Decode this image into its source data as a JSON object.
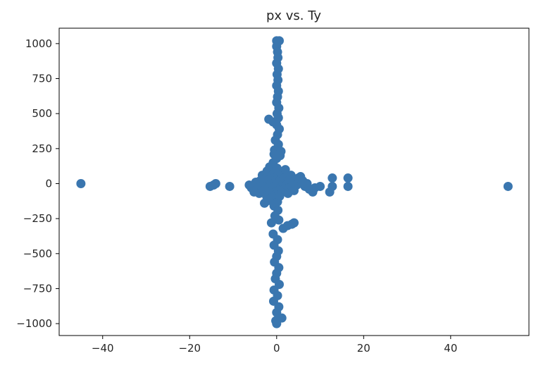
{
  "chart_data": {
    "type": "scatter",
    "title": "px vs. Ty",
    "xlabel": "",
    "ylabel": "",
    "xlim": [
      -50,
      58
    ],
    "ylim": [
      -1085,
      1110
    ],
    "x_ticks": [
      -40,
      -20,
      0,
      20,
      40
    ],
    "y_ticks": [
      1000,
      750,
      500,
      250,
      0,
      -250,
      -500,
      -750,
      -1000
    ],
    "grid": false,
    "marker_color": "#3a76af",
    "series": [
      {
        "values": [
          {
            "x": -45.0,
            "y": 0
          },
          {
            "x": 53.2,
            "y": -20
          },
          {
            "x": -15.3,
            "y": -20
          },
          {
            "x": -14.5,
            "y": -10
          },
          {
            "x": -14.0,
            "y": 0
          },
          {
            "x": -10.8,
            "y": -20
          },
          {
            "x": -6.3,
            "y": -10
          },
          {
            "x": -5.8,
            "y": -30
          },
          {
            "x": -5.2,
            "y": -60
          },
          {
            "x": -4.8,
            "y": 10
          },
          {
            "x": -4.5,
            "y": -40
          },
          {
            "x": -4.0,
            "y": -70
          },
          {
            "x": -3.8,
            "y": 20
          },
          {
            "x": -3.5,
            "y": -20
          },
          {
            "x": -3.3,
            "y": 60
          },
          {
            "x": -3.0,
            "y": -50
          },
          {
            "x": -2.8,
            "y": -140
          },
          {
            "x": -2.6,
            "y": 10
          },
          {
            "x": -2.5,
            "y": 40
          },
          {
            "x": -2.3,
            "y": -90
          },
          {
            "x": -2.2,
            "y": 90
          },
          {
            "x": -2.0,
            "y": -30
          },
          {
            "x": -1.8,
            "y": -120
          },
          {
            "x": -1.7,
            "y": 30
          },
          {
            "x": -1.6,
            "y": 120
          },
          {
            "x": -1.5,
            "y": -60
          },
          {
            "x": -1.3,
            "y": 0
          },
          {
            "x": -1.2,
            "y": -100
          },
          {
            "x": -1.0,
            "y": 60
          },
          {
            "x": -0.9,
            "y": -40
          },
          {
            "x": -0.8,
            "y": 150
          },
          {
            "x": -0.6,
            "y": -160
          },
          {
            "x": -0.5,
            "y": 20
          },
          {
            "x": -0.4,
            "y": 80
          },
          {
            "x": -0.3,
            "y": -80
          },
          {
            "x": -0.2,
            "y": 40
          },
          {
            "x": -0.1,
            "y": -20
          },
          {
            "x": 0.0,
            "y": 0
          },
          {
            "x": 0.1,
            "y": 110
          },
          {
            "x": 0.2,
            "y": -130
          },
          {
            "x": 0.3,
            "y": 60
          },
          {
            "x": 0.4,
            "y": -50
          },
          {
            "x": 0.5,
            "y": 10
          },
          {
            "x": 0.6,
            "y": 90
          },
          {
            "x": 0.7,
            "y": -90
          },
          {
            "x": 0.9,
            "y": 30
          },
          {
            "x": 1.0,
            "y": -30
          },
          {
            "x": 1.2,
            "y": 70
          },
          {
            "x": 1.3,
            "y": -60
          },
          {
            "x": 1.5,
            "y": 0
          },
          {
            "x": 1.7,
            "y": 40
          },
          {
            "x": 1.8,
            "y": -40
          },
          {
            "x": 2.0,
            "y": 100
          },
          {
            "x": 2.2,
            "y": -10
          },
          {
            "x": 2.4,
            "y": 50
          },
          {
            "x": 2.6,
            "y": -70
          },
          {
            "x": 2.8,
            "y": 20
          },
          {
            "x": 3.0,
            "y": -30
          },
          {
            "x": 3.3,
            "y": 60
          },
          {
            "x": 3.5,
            "y": -20
          },
          {
            "x": 3.8,
            "y": 10
          },
          {
            "x": 4.0,
            "y": -50
          },
          {
            "x": 4.3,
            "y": 30
          },
          {
            "x": 4.6,
            "y": -10
          },
          {
            "x": 5.0,
            "y": 40
          },
          {
            "x": 5.5,
            "y": 50
          },
          {
            "x": 5.8,
            "y": 0
          },
          {
            "x": 6.0,
            "y": 20
          },
          {
            "x": 6.5,
            "y": -20
          },
          {
            "x": 7.0,
            "y": 0
          },
          {
            "x": 7.5,
            "y": -40
          },
          {
            "x": 8.3,
            "y": -60
          },
          {
            "x": 8.8,
            "y": -30
          },
          {
            "x": 10.0,
            "y": -20
          },
          {
            "x": 12.8,
            "y": 40
          },
          {
            "x": 12.8,
            "y": -20
          },
          {
            "x": 12.2,
            "y": -60
          },
          {
            "x": 16.4,
            "y": 40
          },
          {
            "x": 16.4,
            "y": -20
          },
          {
            "x": 0.0,
            "y": 1020
          },
          {
            "x": 0.6,
            "y": 1020
          },
          {
            "x": 0.0,
            "y": 980
          },
          {
            "x": 0.2,
            "y": 940
          },
          {
            "x": 0.3,
            "y": 900
          },
          {
            "x": 0.0,
            "y": 860
          },
          {
            "x": 0.4,
            "y": 820
          },
          {
            "x": 0.1,
            "y": 780
          },
          {
            "x": 0.3,
            "y": 740
          },
          {
            "x": 0.0,
            "y": 700
          },
          {
            "x": 0.4,
            "y": 660
          },
          {
            "x": 0.2,
            "y": 620
          },
          {
            "x": 0.0,
            "y": 580
          },
          {
            "x": 0.5,
            "y": 540
          },
          {
            "x": 0.1,
            "y": 500
          },
          {
            "x": 0.4,
            "y": 470
          },
          {
            "x": -1.8,
            "y": 460
          },
          {
            "x": -0.8,
            "y": 440
          },
          {
            "x": 0.0,
            "y": 420
          },
          {
            "x": 0.6,
            "y": 390
          },
          {
            "x": 0.2,
            "y": 350
          },
          {
            "x": -0.3,
            "y": 310
          },
          {
            "x": 0.4,
            "y": 280
          },
          {
            "x": -0.5,
            "y": 240
          },
          {
            "x": 1.0,
            "y": 230
          },
          {
            "x": 0.8,
            "y": 200
          },
          {
            "x": 0.0,
            "y": 180
          },
          {
            "x": -0.6,
            "y": 210
          },
          {
            "x": 0.3,
            "y": -190
          },
          {
            "x": -0.4,
            "y": -230
          },
          {
            "x": 0.5,
            "y": -260
          },
          {
            "x": -1.2,
            "y": -280
          },
          {
            "x": 3.5,
            "y": -290
          },
          {
            "x": 4.0,
            "y": -280
          },
          {
            "x": 2.5,
            "y": -300
          },
          {
            "x": 1.5,
            "y": -320
          },
          {
            "x": -0.8,
            "y": -360
          },
          {
            "x": 0.2,
            "y": -400
          },
          {
            "x": -0.6,
            "y": -440
          },
          {
            "x": 0.4,
            "y": -480
          },
          {
            "x": 0.0,
            "y": -520
          },
          {
            "x": -0.5,
            "y": -560
          },
          {
            "x": 0.5,
            "y": -600
          },
          {
            "x": 0.0,
            "y": -640
          },
          {
            "x": -0.3,
            "y": -680
          },
          {
            "x": 0.6,
            "y": -720
          },
          {
            "x": -0.6,
            "y": -760
          },
          {
            "x": 0.2,
            "y": -800
          },
          {
            "x": -0.7,
            "y": -840
          },
          {
            "x": 0.5,
            "y": -880
          },
          {
            "x": 0.0,
            "y": -920
          },
          {
            "x": 1.2,
            "y": -960
          },
          {
            "x": -0.2,
            "y": -980
          },
          {
            "x": 0.0,
            "y": -1000
          }
        ]
      }
    ]
  }
}
